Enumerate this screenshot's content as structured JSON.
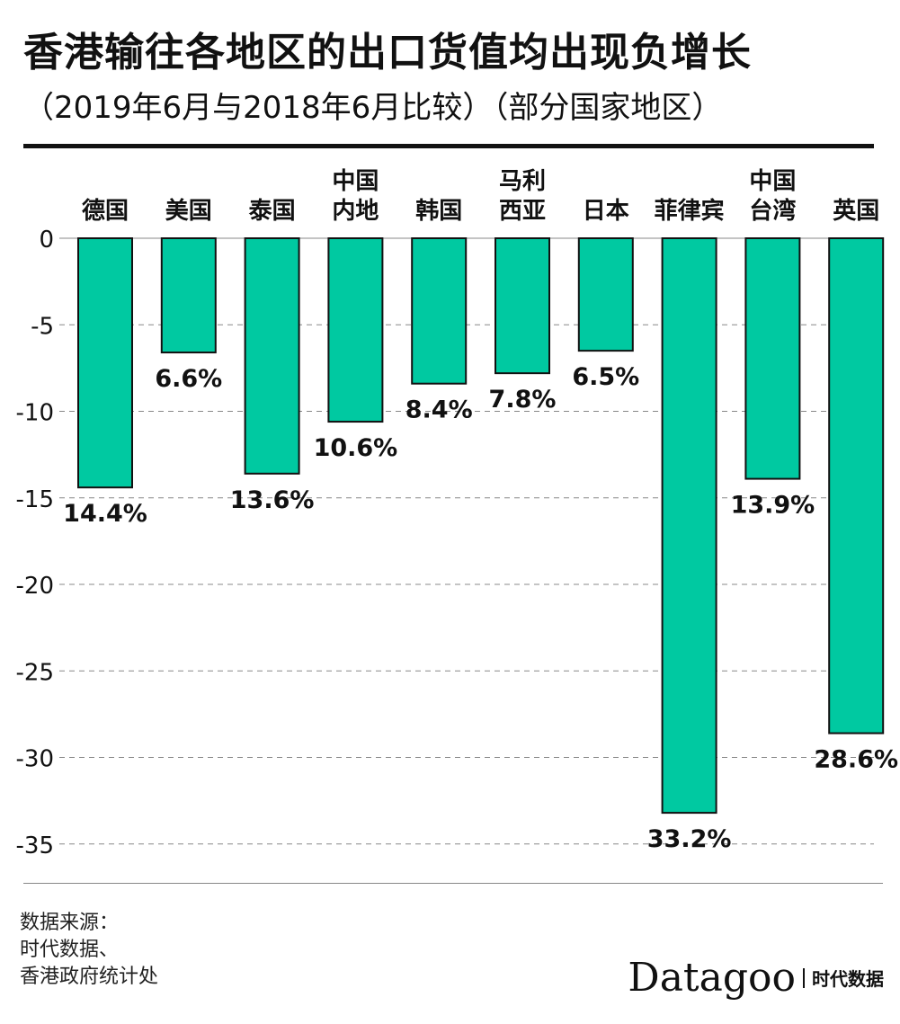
{
  "header": {
    "title": "香港输往各地区的出口货值均出现负增长",
    "subtitle": "（2019年6月与2018年6月比较）（部分国家地区）"
  },
  "footer": {
    "source_lines": [
      "数据来源：",
      "时代数据、",
      "香港政府统计处"
    ],
    "brand_name": "Datagoo",
    "brand_sub": "时代数据"
  },
  "colors": {
    "bar_fill": "#00c9a1",
    "bar_stroke": "#111111",
    "grid": "#888888",
    "text": "#111111"
  },
  "chart_data": {
    "type": "bar",
    "orientation": "vertical-down",
    "categories": [
      [
        "德国"
      ],
      [
        "美国"
      ],
      [
        "泰国"
      ],
      [
        "中国",
        "内地"
      ],
      [
        "韩国"
      ],
      [
        "马利",
        "西亚"
      ],
      [
        "日本"
      ],
      [
        "菲律宾"
      ],
      [
        "中国",
        "台湾"
      ],
      [
        "英国"
      ]
    ],
    "values": [
      -14.4,
      -6.6,
      -13.6,
      -10.6,
      -8.4,
      -7.8,
      -6.5,
      -33.2,
      -13.9,
      -28.6
    ],
    "data_labels": [
      "14.4%",
      "6.6%",
      "13.6%",
      "10.6%",
      "8.4%",
      "7.8%",
      "6.5%",
      "33.2%",
      "13.9%",
      "28.6%"
    ],
    "yticks": [
      0,
      -5,
      -10,
      -15,
      -20,
      -25,
      -30,
      -35
    ],
    "ytick_labels": [
      "0",
      "-5",
      "-10",
      "-15",
      "-20",
      "-25",
      "-30",
      "-35"
    ],
    "ylim": [
      -35,
      0
    ],
    "grid": true,
    "grid_style": "dashed",
    "category_axis_position": "top"
  }
}
